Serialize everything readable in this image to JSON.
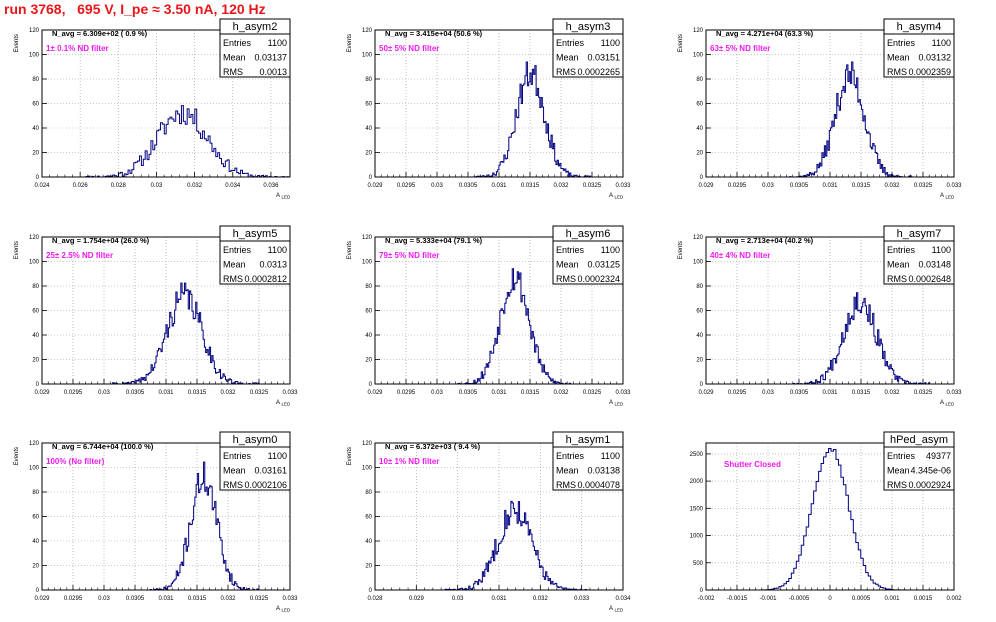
{
  "title": "run 3768,   695 V, I_pe ≈ 3.50 nA, 120 Hz",
  "chart_data": [
    {
      "type": "histogram",
      "name": "h_asym2",
      "navg": "N_avg = 6.309e+02 ( 0.9 %)",
      "filter": "1± 0.1% ND filter",
      "stats": {
        "entries": "1100",
        "mean": "0.03137",
        "rms": "0.0013"
      },
      "ylabel": "Events",
      "xlabel": "A_LED",
      "xlim": [
        0.024,
        0.037
      ],
      "ylim": [
        0,
        120
      ],
      "xticks": [
        0.024,
        0.026,
        0.028,
        0.03,
        0.032,
        0.034,
        0.036
      ],
      "xtick_labels": [
        "0.024",
        "0.026",
        "0.028",
        "0.03",
        "0.032",
        "0.034",
        "0.036"
      ],
      "yticks": [
        0,
        20,
        40,
        60,
        80,
        100,
        120
      ],
      "bins": {
        "center": 0.03137,
        "sigma": 0.0013,
        "peak": 53,
        "step": 0.0001,
        "seed": 11
      }
    },
    {
      "type": "histogram",
      "name": "h_asym3",
      "navg": "N_avg = 3.415e+04 (50.6 %)",
      "filter": "50± 5% ND filter",
      "stats": {
        "entries": "1100",
        "mean": "0.03151",
        "rms": "0.0002265"
      },
      "ylabel": "Events",
      "xlabel": "A_LED",
      "xlim": [
        0.029,
        0.033
      ],
      "ylim": [
        0,
        120
      ],
      "xticks": [
        0.029,
        0.0295,
        0.03,
        0.0305,
        0.031,
        0.0315,
        0.032,
        0.0325,
        0.033
      ],
      "xtick_labels": [
        "0.029",
        "0.0295",
        "0.03",
        "0.0305",
        "0.031",
        "0.0315",
        "0.032",
        "0.0325",
        "0.033"
      ],
      "yticks": [
        0,
        20,
        40,
        60,
        80,
        100,
        120
      ],
      "bins": {
        "center": 0.03151,
        "sigma": 0.0002265,
        "peak": 85,
        "step": 2e-05,
        "seed": 23
      }
    },
    {
      "type": "histogram",
      "name": "h_asym4",
      "navg": "N_avg = 4.271e+04 (63.3 %)",
      "filter": "63± 5% ND filter",
      "stats": {
        "entries": "1100",
        "mean": "0.03132",
        "rms": "0.0002359"
      },
      "ylabel": "Events",
      "xlabel": "A_LED",
      "xlim": [
        0.029,
        0.033
      ],
      "ylim": [
        0,
        120
      ],
      "xticks": [
        0.029,
        0.0295,
        0.03,
        0.0305,
        0.031,
        0.0315,
        0.032,
        0.0325,
        0.033
      ],
      "xtick_labels": [
        "0.029",
        "0.0295",
        "0.03",
        "0.0305",
        "0.031",
        "0.0315",
        "0.032",
        "0.0325",
        "0.033"
      ],
      "yticks": [
        0,
        20,
        40,
        60,
        80,
        100,
        120
      ],
      "bins": {
        "center": 0.03132,
        "sigma": 0.0002359,
        "peak": 83,
        "step": 2e-05,
        "seed": 37
      }
    },
    {
      "type": "histogram",
      "name": "h_asym5",
      "navg": "N_avg = 1.754e+04 (26.0 %)",
      "filter": "25± 2.5% ND filter",
      "stats": {
        "entries": "1100",
        "mean": "0.0313",
        "rms": "0.0002812"
      },
      "ylabel": "Events",
      "xlabel": "A_LED",
      "xlim": [
        0.029,
        0.033
      ],
      "ylim": [
        0,
        120
      ],
      "xticks": [
        0.029,
        0.0295,
        0.03,
        0.0305,
        0.031,
        0.0315,
        0.032,
        0.0325,
        0.033
      ],
      "xtick_labels": [
        "0.029",
        "0.0295",
        "0.03",
        "0.0305",
        "0.031",
        "0.0315",
        "0.032",
        "0.0325",
        "0.033"
      ],
      "yticks": [
        0,
        20,
        40,
        60,
        80,
        100,
        120
      ],
      "bins": {
        "center": 0.0313,
        "sigma": 0.0002812,
        "peak": 72,
        "step": 2e-05,
        "seed": 41
      }
    },
    {
      "type": "histogram",
      "name": "h_asym6",
      "navg": "N_avg = 5.333e+04 (79.1 %)",
      "filter": "79± 5% ND filter",
      "stats": {
        "entries": "1100",
        "mean": "0.03125",
        "rms": "0.0002324"
      },
      "ylabel": "Events",
      "xlabel": "A_LED",
      "xlim": [
        0.029,
        0.033
      ],
      "ylim": [
        0,
        120
      ],
      "xticks": [
        0.029,
        0.0295,
        0.03,
        0.0305,
        0.031,
        0.0315,
        0.032,
        0.0325,
        0.033
      ],
      "xtick_labels": [
        "0.029",
        "0.0295",
        "0.03",
        "0.0305",
        "0.031",
        "0.0315",
        "0.032",
        "0.0325",
        "0.033"
      ],
      "yticks": [
        0,
        20,
        40,
        60,
        80,
        100,
        120
      ],
      "bins": {
        "center": 0.03125,
        "sigma": 0.0002324,
        "peak": 88,
        "step": 2e-05,
        "seed": 53
      }
    },
    {
      "type": "histogram",
      "name": "h_asym7",
      "navg": "N_avg = 2.713e+04 (40.2 %)",
      "filter": "40± 4% ND filter",
      "stats": {
        "entries": "1100",
        "mean": "0.03148",
        "rms": "0.0002648"
      },
      "ylabel": "Events",
      "xlabel": "A_LED",
      "xlim": [
        0.029,
        0.033
      ],
      "ylim": [
        0,
        120
      ],
      "xticks": [
        0.029,
        0.0295,
        0.03,
        0.0305,
        0.031,
        0.0315,
        0.032,
        0.0325,
        0.033
      ],
      "xtick_labels": [
        "0.029",
        "0.0295",
        "0.03",
        "0.0305",
        "0.031",
        "0.0315",
        "0.032",
        "0.0325",
        "0.033"
      ],
      "yticks": [
        0,
        20,
        40,
        60,
        80,
        100,
        120
      ],
      "bins": {
        "center": 0.03148,
        "sigma": 0.0002648,
        "peak": 68,
        "step": 2e-05,
        "seed": 67
      }
    },
    {
      "type": "histogram",
      "name": "h_asym0",
      "navg": "N_avg = 6.744e+04 (100.0 %)",
      "filter": "100% (No filter)",
      "stats": {
        "entries": "1100",
        "mean": "0.03161",
        "rms": "0.0002106"
      },
      "ylabel": "Events",
      "xlabel": "A_LED",
      "xlim": [
        0.029,
        0.033
      ],
      "ylim": [
        0,
        120
      ],
      "xticks": [
        0.029,
        0.0295,
        0.03,
        0.0305,
        0.031,
        0.0315,
        0.032,
        0.0325,
        0.033
      ],
      "xtick_labels": [
        "0.029",
        "0.0295",
        "0.03",
        "0.0305",
        "0.031",
        "0.0315",
        "0.032",
        "0.0325",
        "0.033"
      ],
      "yticks": [
        0,
        20,
        40,
        60,
        80,
        100,
        120
      ],
      "bins": {
        "center": 0.03161,
        "sigma": 0.0002106,
        "peak": 92,
        "step": 2e-05,
        "seed": 71
      }
    },
    {
      "type": "histogram",
      "name": "h_asym1",
      "navg": "N_avg = 6.372e+03 ( 9.4 %)",
      "filter": "10± 1% ND filter",
      "stats": {
        "entries": "1100",
        "mean": "0.03138",
        "rms": "0.0004078"
      },
      "ylabel": "Events",
      "xlabel": "A_LED",
      "xlim": [
        0.028,
        0.034
      ],
      "ylim": [
        0,
        120
      ],
      "xticks": [
        0.028,
        0.029,
        0.03,
        0.031,
        0.032,
        0.033,
        0.034
      ],
      "xtick_labels": [
        "0.028",
        "0.029",
        "0.03",
        "0.031",
        "0.032",
        "0.033",
        "0.034"
      ],
      "yticks": [
        0,
        20,
        40,
        60,
        80,
        100,
        120
      ],
      "bins": {
        "center": 0.03138,
        "sigma": 0.0004078,
        "peak": 66,
        "step": 3e-05,
        "seed": 83
      }
    },
    {
      "type": "histogram",
      "name": "hPed_asym",
      "navg": "",
      "filter": "Shutter Closed",
      "stats": {
        "entries": "49377",
        "mean": "4.345e-06",
        "rms": "0.0002924"
      },
      "ylabel": "",
      "xlabel": "",
      "xlim": [
        -0.002,
        0.002
      ],
      "ylim": [
        0,
        2700
      ],
      "xticks": [
        -0.002,
        -0.0015,
        -0.001,
        -0.0005,
        0,
        0.0005,
        0.001,
        0.0015,
        0.002
      ],
      "xtick_labels": [
        "-0.002",
        "-0.0015",
        "-0.001",
        "-0.0005",
        "0",
        "0.0005",
        "0.001",
        "0.0015",
        "0.002"
      ],
      "yticks": [
        0,
        500,
        1000,
        1500,
        2000,
        2500
      ],
      "bins": {
        "center": 4.3e-06,
        "sigma": 0.0002924,
        "peak": 2620,
        "step": 4e-05,
        "seed": 97
      }
    }
  ],
  "labels": {
    "entries": "Entries",
    "mean": "Mean",
    "rms": "RMS"
  },
  "colors": {
    "title": "#e8161a",
    "filter": "#f019f0",
    "hist": "#000080",
    "grid": "#999999"
  }
}
